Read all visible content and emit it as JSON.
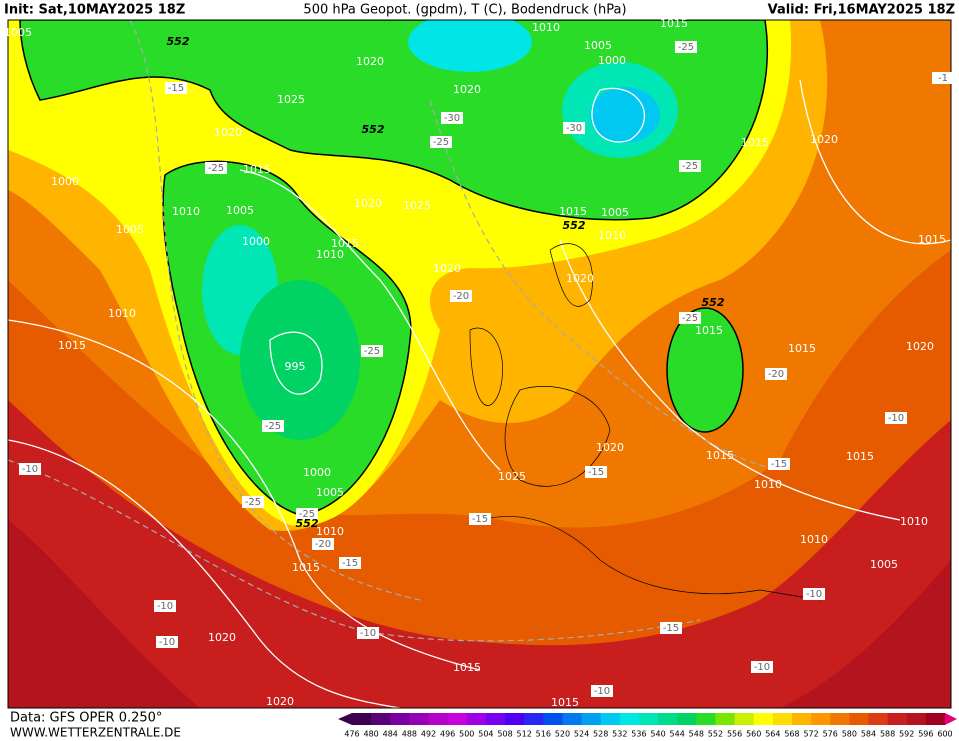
{
  "header": {
    "init": "Init: Sat,10MAY2025 18Z",
    "title": "500 hPa Geopot. (gpdm), T (C), Bodendruck (hPa)",
    "valid": "Valid: Fri,16MAY2025 18Z"
  },
  "footer": {
    "source": "Data: GFS OPER 0.250°",
    "site": "WWW.WETTERZENTRALE.DE"
  },
  "legend": {
    "levels": [
      476,
      480,
      484,
      488,
      492,
      496,
      500,
      504,
      508,
      512,
      516,
      520,
      524,
      528,
      532,
      536,
      540,
      544,
      548,
      552,
      556,
      560,
      564,
      568,
      572,
      576,
      580,
      584,
      588,
      592,
      596,
      600
    ],
    "colors": [
      "#3c0050",
      "#5a0078",
      "#7800a0",
      "#9600b4",
      "#b400c8",
      "#c800dc",
      "#a000e6",
      "#7800f0",
      "#5000f0",
      "#2828f0",
      "#0050f0",
      "#0078f0",
      "#00a0f0",
      "#00c8f0",
      "#00e6e6",
      "#00e6b4",
      "#00dc8c",
      "#00d264",
      "#28dc28",
      "#78e600",
      "#c8f000",
      "#ffff00",
      "#ffdc00",
      "#ffb400",
      "#ff9600",
      "#f07800",
      "#e65a00",
      "#dc3c14",
      "#c81e1e",
      "#b4141e",
      "#a0001e"
    ]
  },
  "map": {
    "isobar_labels": [
      "1005",
      "1015",
      "1010",
      "1005",
      "1000",
      "1020",
      "1025",
      "1020",
      "1020",
      "1015",
      "1020",
      "1015",
      "1000",
      "1010",
      "1005",
      "1020",
      "1025",
      "1015",
      "1005",
      "1005",
      "1000",
      "1015",
      "1010",
      "1010",
      "1015",
      "1020",
      "1020",
      "1010",
      "1015",
      "1015",
      "1015",
      "1020",
      "995",
      "1020",
      "1015",
      "1015",
      "1000",
      "1025",
      "1010",
      "1005",
      "1010",
      "1010",
      "1010",
      "1015",
      "1005",
      "1020",
      "1015",
      "1020",
      "1015"
    ],
    "temperature_labels": [
      "-15",
      "-25",
      "-30",
      "-25",
      "-30",
      "-25",
      "-25",
      "-20",
      "-25",
      "-25",
      "-20",
      "-10",
      "-25",
      "-10",
      "-15",
      "-15",
      "-25",
      "-25",
      "-20",
      "-15",
      "-15",
      "-10",
      "-10",
      "-10",
      "-15",
      "-10",
      "-10",
      "-10",
      "-1"
    ],
    "geopotential_labels": [
      "552",
      "552",
      "552",
      "552",
      "552"
    ]
  }
}
